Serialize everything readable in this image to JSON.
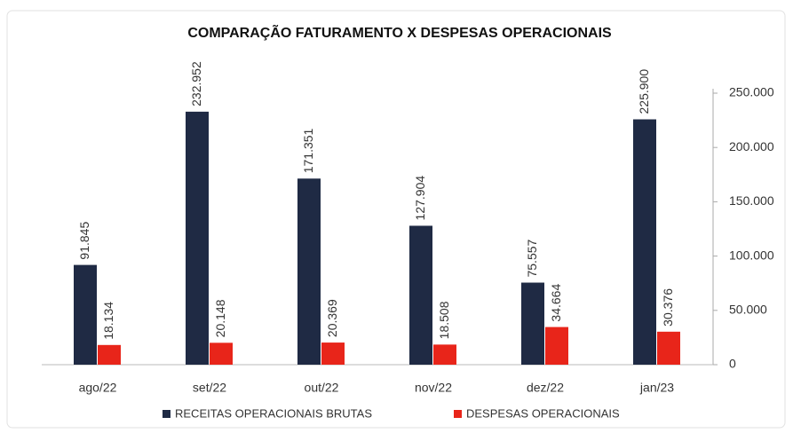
{
  "chart_data": {
    "type": "bar",
    "title": "COMPARAÇÃO FATURAMENTO X DESPESAS OPERACIONAIS",
    "categories": [
      "ago/22",
      "set/22",
      "out/22",
      "nov/22",
      "dez/22",
      "jan/23"
    ],
    "series": [
      {
        "name": "RECEITAS OPERACIONAIS BRUTAS",
        "color": "#1f2a44",
        "values": [
          91845,
          232952,
          171351,
          127904,
          75557,
          225900
        ],
        "value_labels": [
          "91.845",
          "232.952",
          "171.351",
          "127.904",
          "75.557",
          "225.900"
        ]
      },
      {
        "name": "DESPESAS OPERACIONAIS",
        "color": "#e8251a",
        "values": [
          18134,
          20148,
          20369,
          18508,
          34664,
          30376
        ],
        "value_labels": [
          "18.134",
          "20.148",
          "20.369",
          "18.508",
          "34.664",
          "30.376"
        ]
      }
    ],
    "ylim": [
      0,
      250000
    ],
    "yticks": [
      0,
      {
        "value": 50000,
        "label": "50.000"
      },
      {
        "value": 100000,
        "label": "100.000"
      },
      {
        "value": 150000,
        "label": "150.000"
      },
      {
        "value": 200000,
        "label": "200.000"
      },
      {
        "value": 250000,
        "label": "250.000"
      }
    ],
    "y_axis_side": "right",
    "legend": "bottom"
  }
}
